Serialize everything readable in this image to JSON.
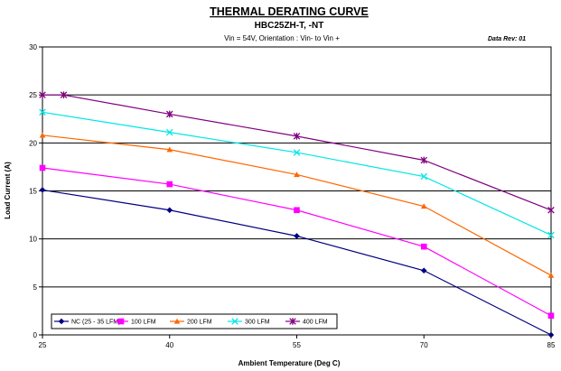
{
  "chart_data": {
    "type": "line",
    "title": "THERMAL DERATING CURVE",
    "subtitle": "HBC25ZH-T, -NT",
    "subtitle2": "Vin = 54V, Orientation : Vin- to Vin +",
    "data_rev": "Data Rev:   01",
    "xlabel": "Ambient Temperature (Deg C)",
    "ylabel": "Load Current (A)",
    "xlim": [
      25,
      85
    ],
    "ylim": [
      0,
      30
    ],
    "x_ticks": [
      "25",
      "40",
      "55",
      "70",
      "85"
    ],
    "y_ticks": [
      "0",
      "5",
      "10",
      "15",
      "20",
      "25",
      "30"
    ],
    "grid": "horizontal",
    "legend_position": "bottom-left",
    "series": [
      {
        "name": "NC (25 - 35 LFM)",
        "color": "#000080",
        "marker": "diamond",
        "points": [
          [
            25,
            15.1
          ],
          [
            40,
            13.0
          ],
          [
            55,
            10.3
          ],
          [
            70,
            6.7
          ],
          [
            85,
            0.0
          ]
        ]
      },
      {
        "name": "100 LFM",
        "color": "#ff00ff",
        "marker": "square",
        "points": [
          [
            25,
            17.4
          ],
          [
            40,
            15.7
          ],
          [
            55,
            13.0
          ],
          [
            70,
            9.2
          ],
          [
            85,
            2.0
          ]
        ]
      },
      {
        "name": "200 LFM",
        "color": "#ff6600",
        "marker": "triangle",
        "points": [
          [
            25,
            20.8
          ],
          [
            40,
            19.3
          ],
          [
            55,
            16.7
          ],
          [
            70,
            13.4
          ],
          [
            85,
            6.2
          ]
        ]
      },
      {
        "name": "300 LFM",
        "color": "#00e6e6",
        "marker": "x",
        "points": [
          [
            25,
            23.2
          ],
          [
            40,
            21.1
          ],
          [
            55,
            19.0
          ],
          [
            70,
            16.5
          ],
          [
            85,
            10.4
          ]
        ]
      },
      {
        "name": "400 LFM",
        "color": "#800080",
        "marker": "star",
        "points": [
          [
            25,
            25.0
          ],
          [
            27.5,
            25.0
          ],
          [
            40,
            23.0
          ],
          [
            55,
            20.7
          ],
          [
            70,
            18.2
          ],
          [
            85,
            13.0
          ]
        ]
      }
    ]
  }
}
